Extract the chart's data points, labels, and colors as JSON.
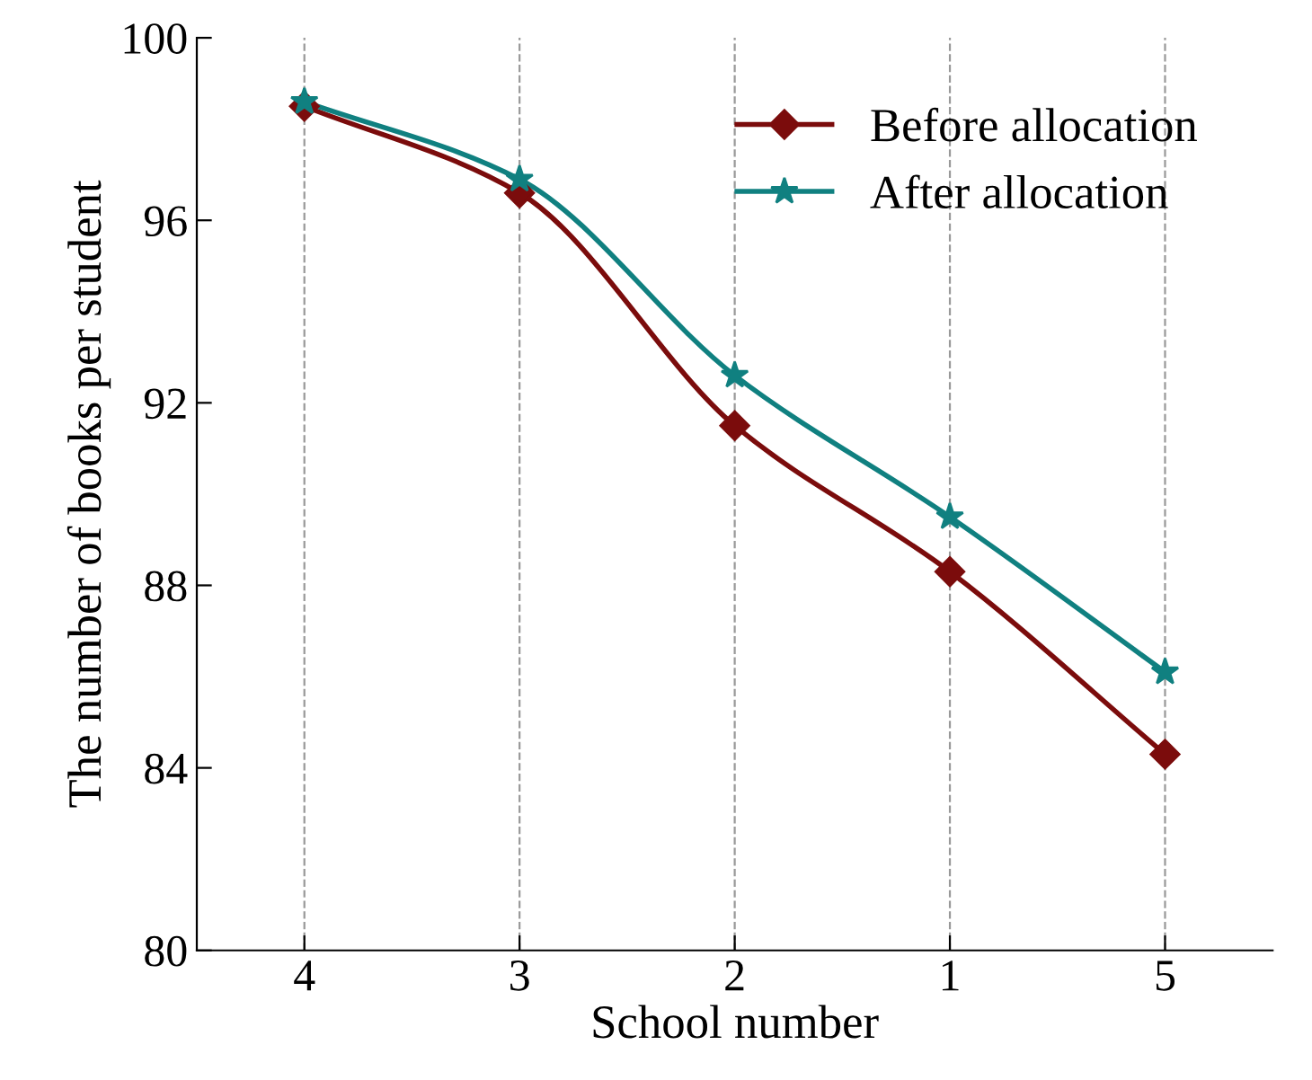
{
  "chart_data": {
    "type": "line",
    "xlabel": "School number",
    "ylabel": "The number of books per student",
    "categories": [
      "4",
      "3",
      "2",
      "1",
      "5"
    ],
    "series": [
      {
        "name": "Before allocation",
        "color": "#7b0c0c",
        "marker": "diamond",
        "values": [
          98.5,
          96.6,
          91.5,
          88.3,
          84.3
        ]
      },
      {
        "name": "After allocation",
        "color": "#108080",
        "marker": "star",
        "values": [
          98.6,
          96.9,
          92.6,
          89.5,
          86.1
        ]
      }
    ],
    "ylim": [
      80,
      100
    ],
    "yticks": [
      80,
      84,
      88,
      92,
      96,
      100
    ],
    "grid": "x",
    "legend": "top right",
    "line_style": "solid"
  }
}
